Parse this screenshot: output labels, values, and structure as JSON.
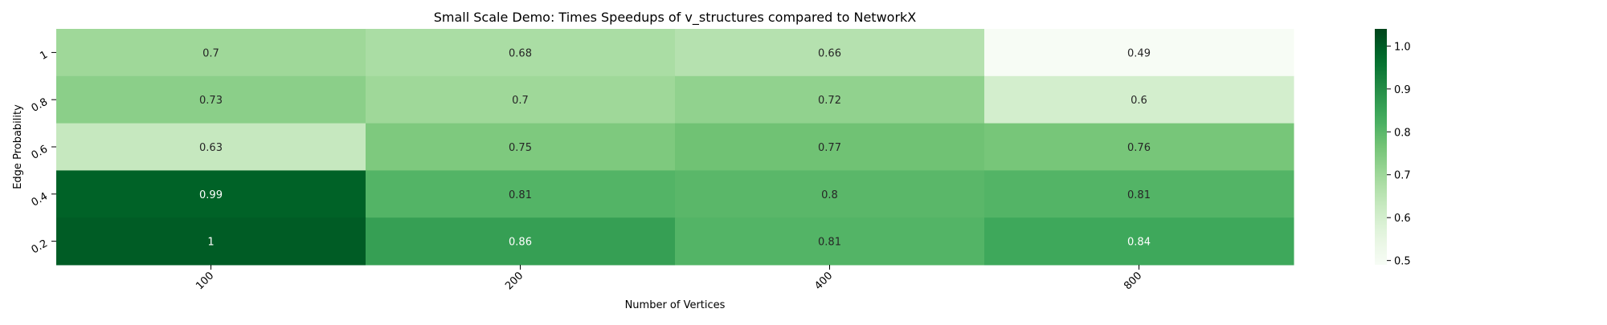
{
  "chart_data": {
    "type": "heatmap",
    "title": "Small Scale Demo: Times Speedups of v_structures compared to NetworkX",
    "xlabel": "Number of Vertices",
    "ylabel": "Edge Probability",
    "x_categories": [
      "100",
      "200",
      "400",
      "800"
    ],
    "y_categories": [
      "1",
      "0.8",
      "0.6",
      "0.4",
      "0.2"
    ],
    "values": [
      [
        0.7,
        0.68,
        0.66,
        0.49
      ],
      [
        0.73,
        0.7,
        0.72,
        0.6
      ],
      [
        0.63,
        0.75,
        0.77,
        0.76
      ],
      [
        0.99,
        0.81,
        0.8,
        0.81
      ],
      [
        1,
        0.86,
        0.81,
        0.84
      ]
    ],
    "colormap": "Greens",
    "color_range": [
      0.49,
      1.04
    ],
    "colorbar": {
      "ticks": [
        "0.5",
        "0.6",
        "0.7",
        "0.8",
        "0.9",
        "1.0"
      ],
      "tick_values": [
        0.5,
        0.6,
        0.7,
        0.8,
        0.9,
        1.0
      ]
    },
    "annotations": true
  }
}
